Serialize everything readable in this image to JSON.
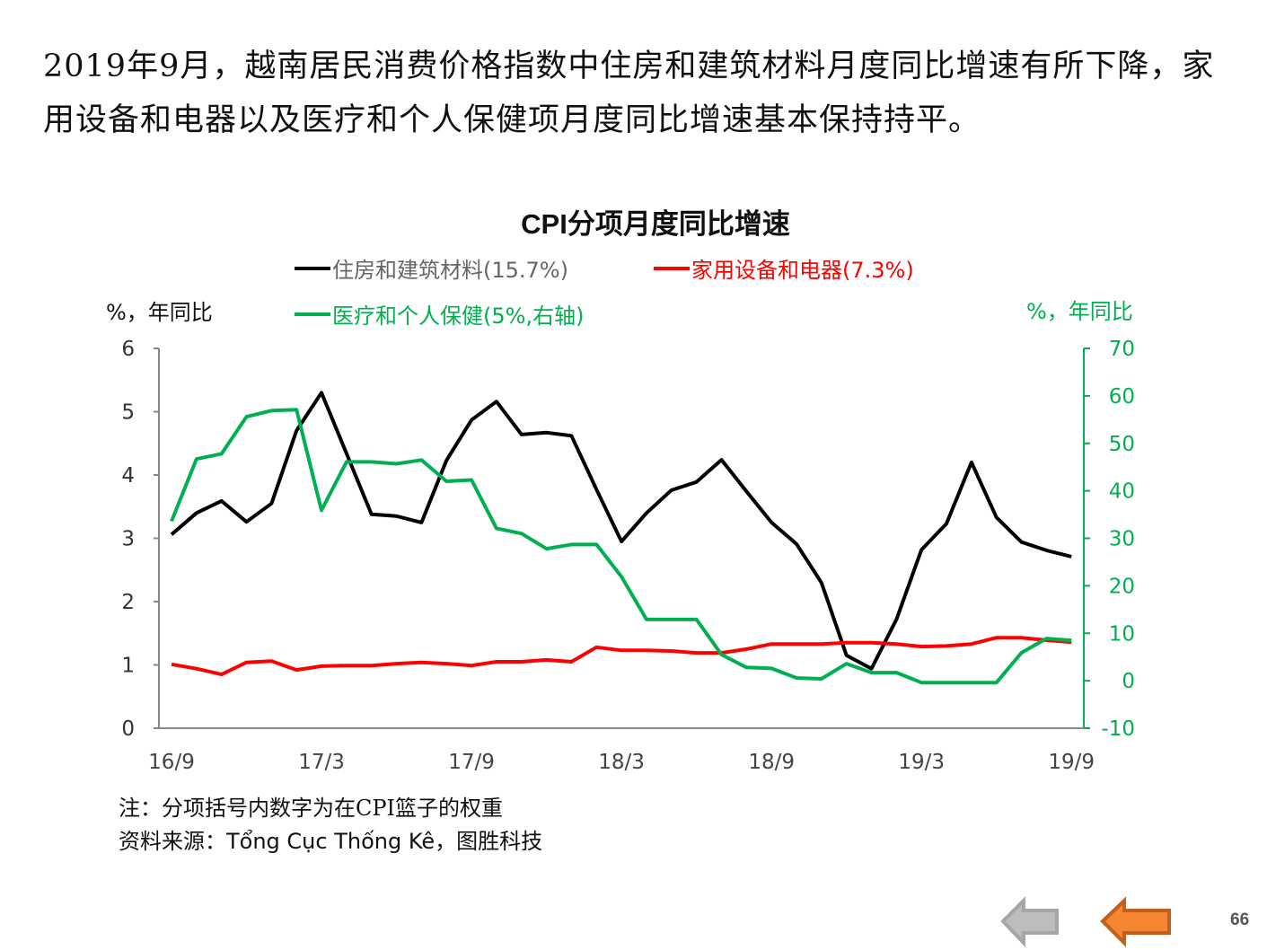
{
  "headline": "2019年9月，越南居民消费价格指数中住房和建筑材料月度同比增速有所下降，家用设备和电器以及医疗和个人保健项月度同比增速基本保持持平。",
  "chart_data": {
    "type": "line",
    "title": "CPI分项月度同比增速",
    "left_unit": "%，年同比",
    "right_unit": "%，年同比",
    "ylim_left": [
      0,
      6
    ],
    "ylim_right": [
      -10,
      70
    ],
    "yticks_left": [
      "0",
      "1",
      "2",
      "3",
      "4",
      "5",
      "6"
    ],
    "yticks_right": [
      "-10",
      "0",
      "10",
      "20",
      "30",
      "40",
      "50",
      "60",
      "70"
    ],
    "xtick_labels": [
      "16/9",
      "17/3",
      "17/9",
      "18/3",
      "18/9",
      "19/3",
      "19/9"
    ],
    "x_start": "2016-09",
    "x_end": "2019-09",
    "grid": false,
    "series": [
      {
        "name": "住房和建筑材料(15.7%)",
        "axis": "left",
        "color": "#000000",
        "values": [
          3.06,
          3.4,
          3.59,
          3.26,
          3.55,
          4.7,
          5.3,
          4.34,
          3.38,
          3.35,
          3.25,
          4.23,
          4.87,
          5.16,
          4.64,
          4.67,
          4.62,
          3.77,
          2.95,
          3.4,
          3.76,
          3.89,
          4.24,
          3.74,
          3.25,
          2.91,
          2.3,
          1.15,
          0.94,
          1.72,
          2.82,
          3.23,
          4.2,
          3.33,
          2.94,
          2.81,
          2.71
        ]
      },
      {
        "name": "家用设备和电器(7.3%)",
        "axis": "left",
        "color": "#ff0000",
        "values": [
          1.01,
          0.94,
          0.85,
          1.04,
          1.06,
          0.92,
          0.98,
          0.99,
          0.99,
          1.02,
          1.04,
          1.02,
          0.99,
          1.05,
          1.05,
          1.08,
          1.05,
          1.28,
          1.23,
          1.23,
          1.22,
          1.19,
          1.19,
          1.25,
          1.33,
          1.33,
          1.33,
          1.35,
          1.35,
          1.33,
          1.29,
          1.3,
          1.33,
          1.43,
          1.43,
          1.39,
          1.36
        ]
      },
      {
        "name": "医疗和个人保健(5%,右轴)",
        "axis": "right",
        "color": "#00b050",
        "values": [
          33.6,
          46.7,
          47.8,
          55.6,
          56.9,
          57.1,
          35.9,
          46.1,
          46.1,
          45.7,
          46.5,
          42.0,
          42.3,
          32.1,
          31.0,
          27.8,
          28.7,
          28.7,
          21.9,
          12.9,
          12.9,
          12.9,
          5.5,
          2.8,
          2.6,
          0.6,
          0.4,
          3.6,
          1.7,
          1.7,
          -0.4,
          -0.4,
          -0.4,
          -0.4,
          5.9,
          8.9,
          8.5
        ]
      }
    ]
  },
  "notes": {
    "note": "注：分项括号内数字为在CPI篮子的权重",
    "source": "资料来源：Tổng Cục Thống Kê，图胜科技"
  },
  "nav": {
    "prev_icon": "arrow-left-gray",
    "next_icon": "arrow-left-orange"
  },
  "page_number": "66"
}
